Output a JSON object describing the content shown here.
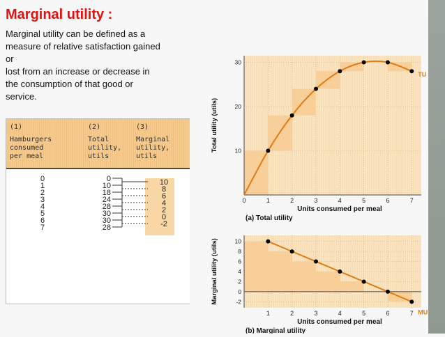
{
  "slide": {
    "title": "Marginal utility :",
    "lines": [
      "Marginal utility can be defined as a",
      "measure of relative satisfaction gained",
      "or",
      "lost from an increase or decrease in",
      "the consumption of that good or",
      "service."
    ]
  },
  "table": {
    "col1": {
      "num": "(1)",
      "label": "Hamburgers\nconsumed\nper meal"
    },
    "col2": {
      "num": "(2)",
      "label": "Total\nutility,\nutils"
    },
    "col3": {
      "num": "(3)",
      "label": "Marginal\nutility,\nutils"
    },
    "hamburgers": [
      "0",
      "1",
      "2",
      "3",
      "4",
      "5",
      "6",
      "7"
    ],
    "total_utility": [
      "0",
      "10",
      "18",
      "24",
      "28",
      "30",
      "30",
      "28"
    ],
    "marginal_utility": [
      "10",
      "8",
      "6",
      "4",
      "2",
      "0",
      "-2"
    ]
  },
  "chart_data": [
    {
      "type": "line",
      "caption": "(a) Total utility",
      "xlabel": "Units consumed per meal",
      "ylabel": "Total utility (utils)",
      "series_label": "TU",
      "x": [
        0,
        1,
        2,
        3,
        4,
        5,
        6,
        7
      ],
      "y": [
        0,
        10,
        18,
        24,
        28,
        30,
        30,
        28
      ],
      "xticks": [
        "0",
        "1",
        "2",
        "3",
        "4",
        "5",
        "6",
        "7"
      ],
      "yticks": [
        "10",
        "20",
        "30"
      ],
      "xlim": [
        0,
        7.4
      ],
      "ylim": [
        0,
        31.5
      ],
      "colors": {
        "line": "#e07b14",
        "points": "#000000",
        "shading": "#f9cf99"
      }
    },
    {
      "type": "line",
      "caption": "(b) Marginal utility",
      "xlabel": "Units consumed per meal",
      "ylabel": "Marginal utility (utils)",
      "series_label": "MU",
      "x": [
        1,
        2,
        3,
        4,
        5,
        6,
        7
      ],
      "y": [
        10,
        8,
        6,
        4,
        2,
        0,
        -2
      ],
      "xticks": [
        "1",
        "2",
        "3",
        "4",
        "5",
        "6",
        "7"
      ],
      "yticks": [
        "10",
        "8",
        "6",
        "4",
        "2",
        "0",
        "-2"
      ],
      "xlim": [
        0,
        7.4
      ],
      "ylim": [
        -3.2,
        11.2
      ],
      "colors": {
        "line": "#e07b14",
        "points": "#000000",
        "shading": "#f9cf99"
      }
    }
  ]
}
